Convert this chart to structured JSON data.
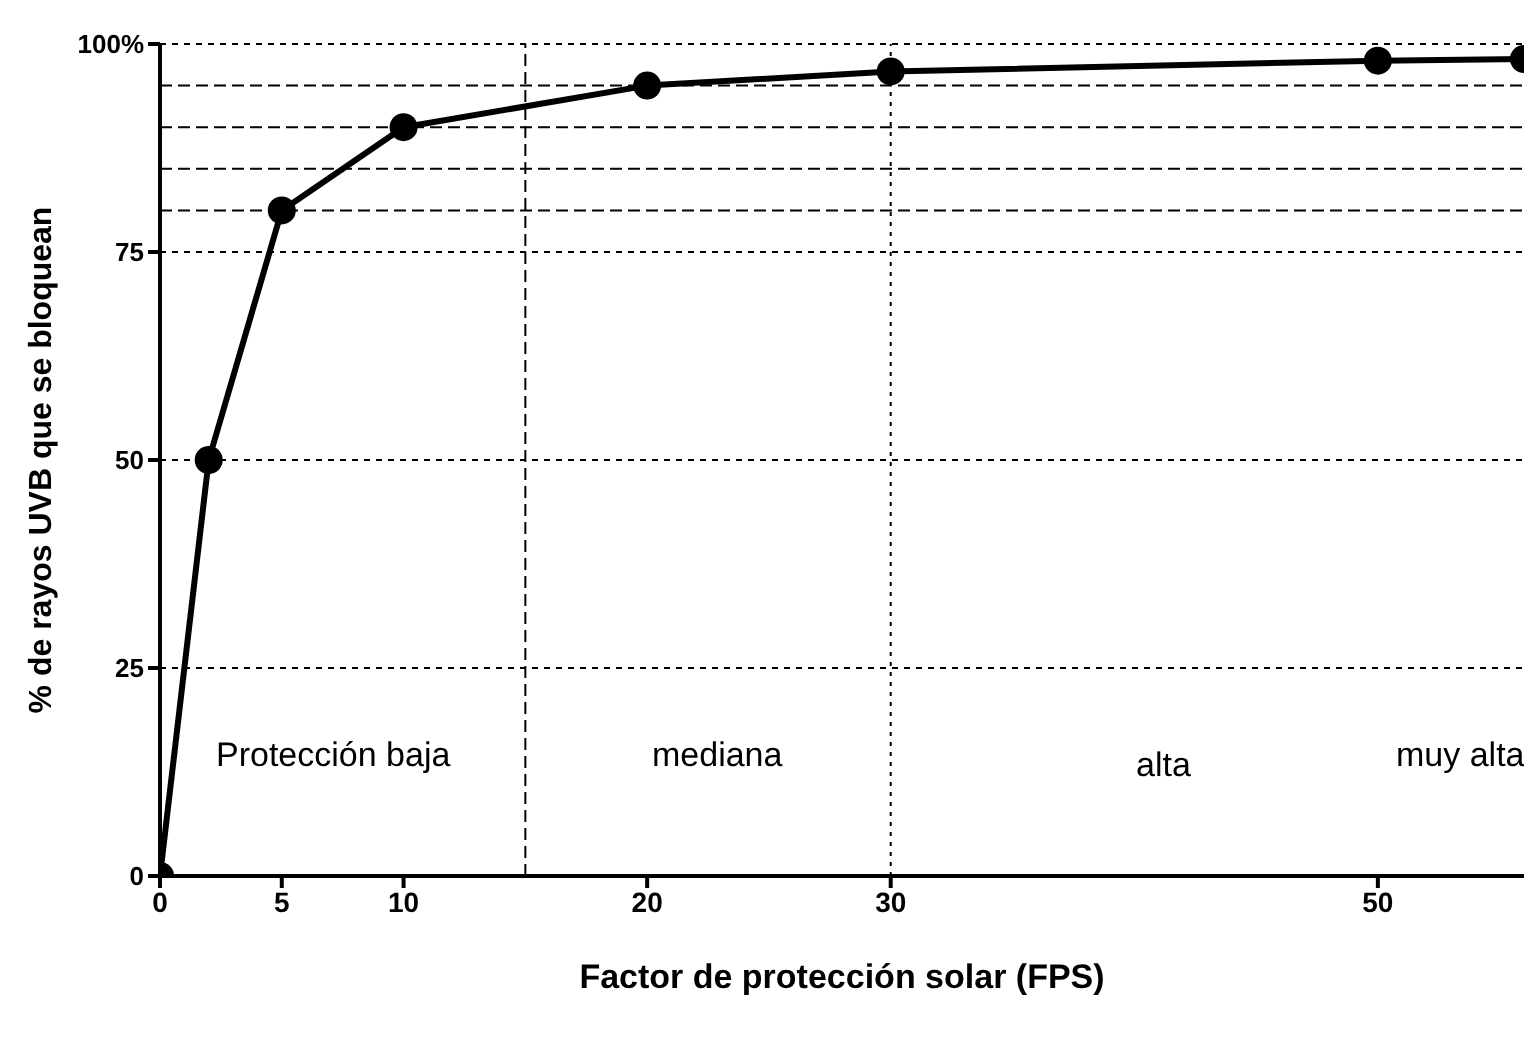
{
  "chart_data": {
    "type": "line",
    "xlabel": "Factor de protección solar (FPS)",
    "ylabel": "% de rayos UVB que se bloquean",
    "x": [
      0,
      2,
      5,
      10,
      20,
      30,
      50,
      56
    ],
    "series": [
      {
        "color": "#000000",
        "values": [
          0,
          50,
          80,
          90,
          95,
          96.7,
          98,
          98.2
        ]
      }
    ],
    "xlim": [
      0,
      56
    ],
    "xticks": [
      0,
      5,
      10,
      20,
      30,
      50
    ],
    "ylim": [
      0,
      100
    ],
    "yticks": [
      0,
      25,
      50,
      75,
      {
        "value": 100,
        "label": "100%"
      }
    ],
    "grid": "y",
    "marker": "circle",
    "line_style": "solid",
    "legend": false,
    "ref_lines": [
      {
        "axis": "y",
        "value": 80,
        "line_style": "dashed"
      },
      {
        "axis": "y",
        "value": 85,
        "line_style": "dashed"
      },
      {
        "axis": "y",
        "value": 90,
        "line_style": "dashed"
      },
      {
        "axis": "y",
        "value": 95,
        "line_style": "dashed"
      },
      {
        "axis": "x",
        "value": 15,
        "line_style": "dashed"
      },
      {
        "axis": "x",
        "value": 30,
        "line_style": "dotted"
      }
    ],
    "annotations": [
      "Protección baja",
      "mediana",
      "alta",
      "muy alta"
    ]
  }
}
